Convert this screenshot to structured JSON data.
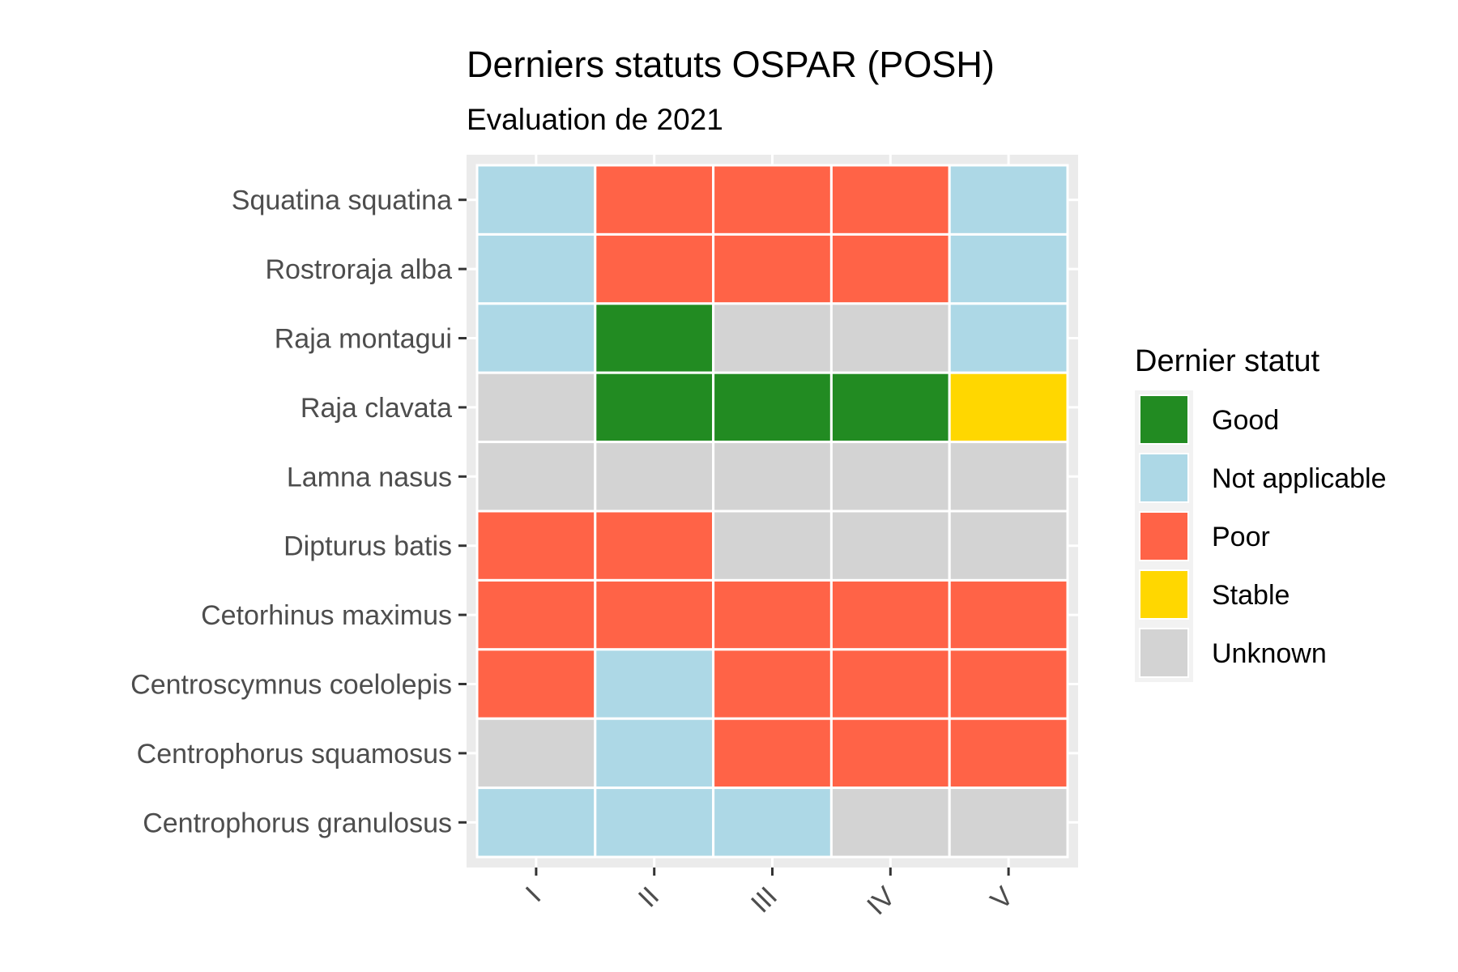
{
  "chart_data": {
    "type": "heatmap",
    "title": "Derniers statuts OSPAR (POSH)",
    "subtitle": "Evaluation de 2021",
    "xlabel": "",
    "ylabel": "",
    "x_categories": [
      "I",
      "II",
      "III",
      "IV",
      "V"
    ],
    "y_categories": [
      "Squatina squatina",
      "Rostroraja alba",
      "Raja montagui",
      "Raja clavata",
      "Lamna nasus",
      "Dipturus batis",
      "Cetorhinus maximus",
      "Centroscymnus coelolepis",
      "Centrophorus squamosus",
      "Centrophorus granulosus"
    ],
    "values": [
      [
        "Not applicable",
        "Poor",
        "Poor",
        "Poor",
        "Not applicable"
      ],
      [
        "Not applicable",
        "Poor",
        "Poor",
        "Poor",
        "Not applicable"
      ],
      [
        "Not applicable",
        "Good",
        "Unknown",
        "Unknown",
        "Not applicable"
      ],
      [
        "Unknown",
        "Good",
        "Good",
        "Good",
        "Stable"
      ],
      [
        "Unknown",
        "Unknown",
        "Unknown",
        "Unknown",
        "Unknown"
      ],
      [
        "Poor",
        "Poor",
        "Unknown",
        "Unknown",
        "Unknown"
      ],
      [
        "Poor",
        "Poor",
        "Poor",
        "Poor",
        "Poor"
      ],
      [
        "Poor",
        "Not applicable",
        "Poor",
        "Poor",
        "Poor"
      ],
      [
        "Unknown",
        "Not applicable",
        "Poor",
        "Poor",
        "Poor"
      ],
      [
        "Not applicable",
        "Not applicable",
        "Not applicable",
        "Unknown",
        "Unknown"
      ]
    ],
    "legend": {
      "title": "Dernier statut",
      "position": "right",
      "items": [
        {
          "label": "Good",
          "color": "#228B22"
        },
        {
          "label": "Not applicable",
          "color": "#ADD8E6"
        },
        {
          "label": "Poor",
          "color": "#FF6347"
        },
        {
          "label": "Stable",
          "color": "#FFD700"
        },
        {
          "label": "Unknown",
          "color": "#D3D3D3"
        }
      ]
    },
    "panel_background": "#EBEBEB",
    "grid": true
  }
}
